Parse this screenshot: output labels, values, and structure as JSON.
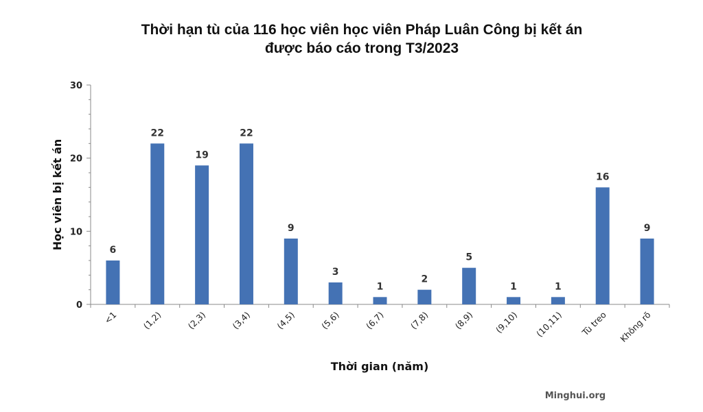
{
  "chart_data": {
    "type": "bar",
    "title_lines": [
      "Thời hạn tù của 116 học viên học viên Pháp Luân Công bị kết án",
      "được báo cáo trong T3/2023"
    ],
    "xlabel": "Thời gian (năm)",
    "ylabel": "Học viên bị kết án",
    "categories": [
      "<1",
      "(1,2)",
      "(2,3)",
      "(3,4)",
      "(4,5)",
      "(5,6)",
      "(6,7)",
      "(7,8)",
      "(8,9)",
      "(9,10)",
      "(10,11)",
      "Tù treo",
      "Không rõ"
    ],
    "values": [
      6,
      22,
      19,
      22,
      9,
      3,
      1,
      2,
      5,
      1,
      1,
      16,
      9
    ],
    "ylim": [
      0,
      30
    ],
    "yticks": [
      0,
      10,
      20,
      30
    ],
    "bar_color": "#4472b4",
    "grid": false,
    "legend": "none",
    "source": "Minghui.org"
  }
}
